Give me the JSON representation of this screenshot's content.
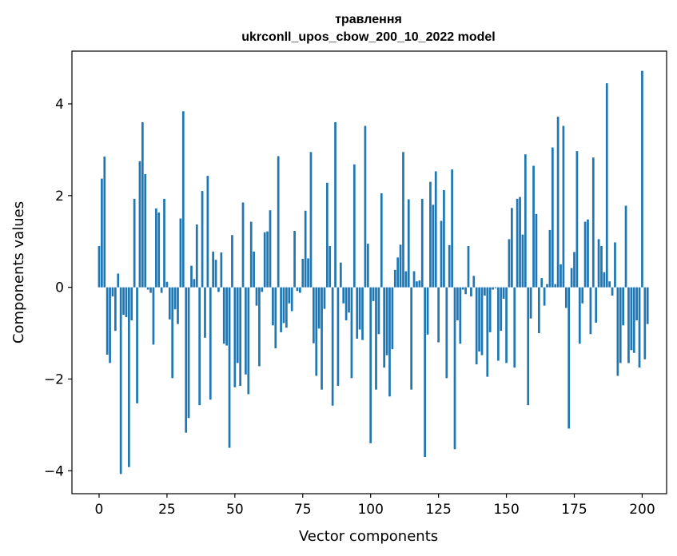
{
  "chart_data": {
    "type": "bar",
    "title": "травлення",
    "subtitle": "ukrconll_upos_cbow_200_10_2022 model",
    "xlabel": "Vector components",
    "ylabel": "Components values",
    "xlim": [
      -10,
      209
    ],
    "ylim": [
      -4.5,
      5.15
    ],
    "x_ticks": [
      0,
      25,
      50,
      75,
      100,
      125,
      150,
      175,
      200
    ],
    "y_ticks": [
      -4,
      -2,
      0,
      2,
      4
    ],
    "x_tick_labels": [
      "0",
      "25",
      "50",
      "75",
      "100",
      "125",
      "150",
      "175",
      "200"
    ],
    "y_tick_labels": [
      "−4",
      "−2",
      "0",
      "2",
      "4"
    ],
    "bar_color": "#1f77b4",
    "grid": false,
    "values": [
      0.9,
      2.37,
      2.85,
      -1.47,
      -1.65,
      -0.2,
      -0.95,
      0.3,
      -4.07,
      -0.6,
      -0.65,
      -3.92,
      -0.72,
      1.93,
      -2.53,
      2.75,
      3.6,
      2.47,
      -0.05,
      -0.12,
      -1.25,
      1.72,
      1.63,
      -0.12,
      1.93,
      0.12,
      -0.7,
      -1.98,
      -0.48,
      -0.8,
      1.5,
      3.84,
      -3.17,
      -2.85,
      0.47,
      0.18,
      1.37,
      -2.57,
      2.1,
      -1.1,
      2.43,
      -2.45,
      0.78,
      0.6,
      -0.1,
      0.76,
      -1.23,
      -1.27,
      -3.5,
      1.14,
      -2.18,
      -1.65,
      -2.15,
      1.85,
      -1.9,
      -2.33,
      1.43,
      0.78,
      -0.4,
      -1.72,
      -0.1,
      1.2,
      1.22,
      1.68,
      -0.83,
      -1.33,
      2.86,
      -0.98,
      -0.78,
      -0.88,
      -0.35,
      -0.52,
      1.23,
      -0.08,
      -0.12,
      0.62,
      1.67,
      0.63,
      2.95,
      -1.22,
      -1.93,
      -0.9,
      -2.23,
      -0.47,
      2.28,
      0.9,
      -2.58,
      3.6,
      -2.15,
      0.54,
      -0.35,
      -0.72,
      -0.55,
      -1.98,
      2.68,
      -1.12,
      -0.92,
      -1.15,
      3.52,
      0.95,
      -3.4,
      -0.3,
      -2.23,
      -1.02,
      2.05,
      -1.75,
      -1.48,
      -2.38,
      -1.35,
      0.38,
      0.65,
      0.93,
      2.95,
      0.35,
      1.92,
      -2.23,
      0.35,
      0.13,
      0.15,
      1.93,
      -3.7,
      -1.03,
      2.3,
      1.8,
      2.53,
      -1.2,
      1.45,
      2.12,
      -1.98,
      0.92,
      2.57,
      -3.53,
      -0.72,
      -1.23,
      -0.05,
      -0.15,
      0.9,
      -0.2,
      0.25,
      -1.68,
      -1.4,
      -1.48,
      -0.18,
      -1.95,
      -0.98,
      -0.05,
      -0.02,
      -1.6,
      -0.95,
      -0.25,
      -1.65,
      1.05,
      1.73,
      -1.75,
      1.93,
      1.97,
      1.15,
      2.9,
      -2.57,
      -0.68,
      2.65,
      1.6,
      -1.0,
      0.2,
      -0.4,
      0.07,
      1.25,
      3.05,
      0.07,
      3.72,
      0.5,
      3.52,
      -0.45,
      -3.08,
      0.42,
      0.77,
      2.97,
      -1.23,
      -0.35,
      1.43,
      1.48,
      -1.02,
      2.83,
      -0.77,
      1.05,
      0.9,
      0.33,
      4.45,
      0.13,
      -0.18,
      0.98,
      -1.93,
      -1.65,
      -0.83,
      1.78,
      -1.65,
      -1.37,
      -1.43,
      -0.72,
      -1.75,
      4.72,
      -1.57,
      -0.8
    ]
  }
}
